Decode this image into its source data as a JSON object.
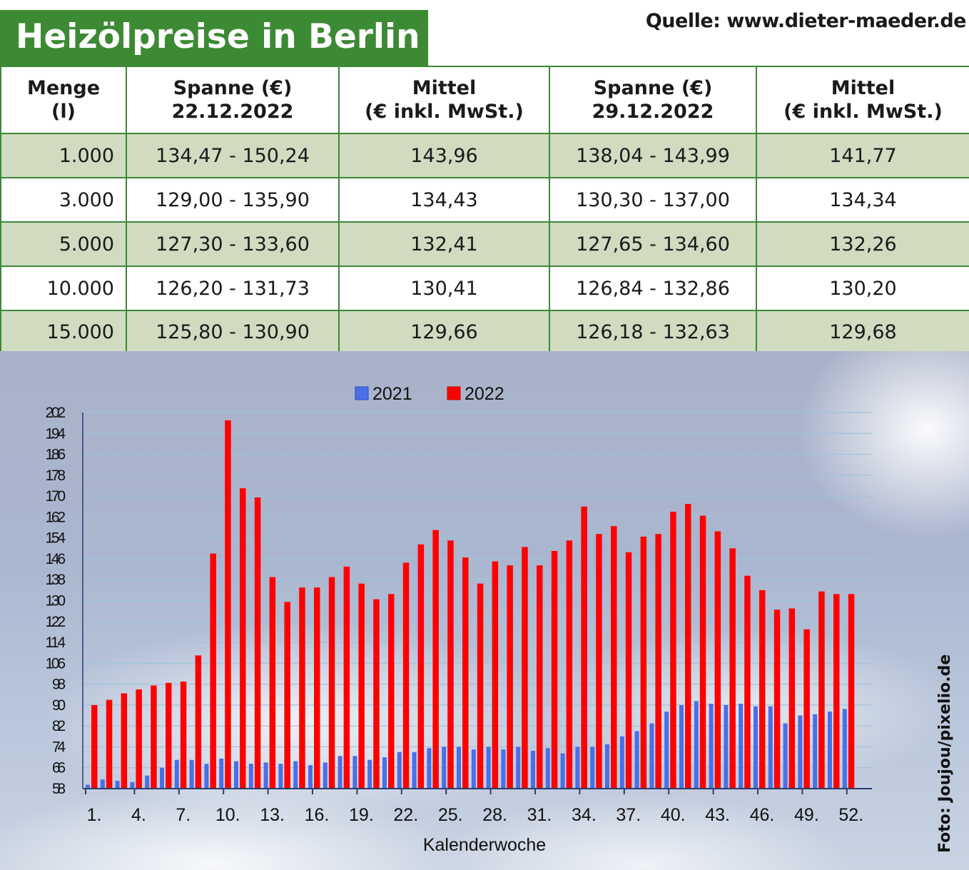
{
  "title": "Heizölpreise in Berlin",
  "source": "Quelle: www.dieter-maeder.de",
  "photo_credit": "Foto: Joujou/pixelio.de",
  "table": {
    "headers": [
      {
        "line1": "Menge",
        "line2": "(l)"
      },
      {
        "line1": "Spanne (€)",
        "line2": "22.12.2022"
      },
      {
        "line1": "Mittel",
        "line2": "(€ inkl. MwSt.)"
      },
      {
        "line1": "Spanne (€)",
        "line2": "29.12.2022"
      },
      {
        "line1": "Mittel",
        "line2": "(€ inkl. MwSt.)"
      }
    ],
    "rows": [
      [
        "1.000",
        "134,47 - 150,24",
        "143,96",
        "138,04 - 143,99",
        "141,77"
      ],
      [
        "3.000",
        "129,00 - 135,90",
        "134,43",
        "130,30 - 137,00",
        "134,34"
      ],
      [
        "5.000",
        "127,30 - 133,60",
        "132,41",
        "127,65 - 134,60",
        "132,26"
      ],
      [
        "10.000",
        "126,20 - 131,73",
        "130,41",
        "126,84 - 132,86",
        "130,20"
      ],
      [
        "15.000",
        "125,80 - 130,90",
        "129,66",
        "126,18 - 132,63",
        "129,68"
      ]
    ]
  },
  "colors": {
    "header_green": "#3d8a34",
    "row_green": "#d0dbc0",
    "border_green": "#3b8a34",
    "series_2021": "#4a6fe6",
    "series_2022": "#ff0000"
  },
  "chart_data": {
    "type": "bar",
    "xlabel": "Kalenderwoche",
    "ylabel": "",
    "ylim": [
      58,
      202
    ],
    "yticks": [
      202,
      194,
      186,
      178,
      170,
      162,
      154,
      146,
      138,
      130,
      122,
      114,
      106,
      98,
      90,
      82,
      74,
      66,
      58
    ],
    "xtick_labels": [
      "1.",
      "4.",
      "7.",
      "10.",
      "13.",
      "16.",
      "19.",
      "22.",
      "25.",
      "28.",
      "31.",
      "34.",
      "37.",
      "40.",
      "43.",
      "46.",
      "49.",
      "52."
    ],
    "categories": [
      1,
      2,
      3,
      4,
      5,
      6,
      7,
      8,
      9,
      10,
      11,
      12,
      13,
      14,
      15,
      16,
      17,
      18,
      19,
      20,
      21,
      22,
      23,
      24,
      25,
      26,
      27,
      28,
      29,
      30,
      31,
      32,
      33,
      34,
      35,
      36,
      37,
      38,
      39,
      40,
      41,
      42,
      43,
      44,
      45,
      46,
      47,
      48,
      49,
      50,
      51,
      52
    ],
    "legend_position": "top",
    "grid": true,
    "series": [
      {
        "name": "2021",
        "values": [
          59.5,
          61.5,
          61,
          60.5,
          63,
          66,
          69,
          69,
          67.5,
          69.5,
          68.5,
          67.5,
          68,
          67.5,
          68.5,
          67,
          68,
          70.5,
          70.5,
          69,
          70,
          72,
          72,
          73.5,
          74,
          74,
          73,
          74,
          73,
          74,
          72.5,
          73.5,
          71.5,
          74,
          74,
          75,
          78,
          80,
          83,
          87.5,
          90,
          91.5,
          90.5,
          90,
          90.5,
          89.5,
          89.5,
          83,
          86,
          86.5,
          87.5,
          88.5
        ]
      },
      {
        "name": "2022",
        "values": [
          90,
          92,
          94.5,
          96,
          97.5,
          98.5,
          99,
          109,
          148,
          199,
          173,
          169.5,
          139,
          129.5,
          135,
          135,
          139,
          143,
          136.5,
          130.5,
          132.5,
          144.5,
          151.5,
          157,
          153,
          146.5,
          136.5,
          145,
          143.5,
          150.5,
          143.5,
          149,
          153,
          166,
          155.5,
          158.5,
          148.5,
          154.5,
          155.5,
          164,
          167,
          162.5,
          156.5,
          150,
          139.5,
          134,
          126.5,
          127,
          119,
          133.5,
          132.5,
          132.5
        ]
      }
    ]
  }
}
